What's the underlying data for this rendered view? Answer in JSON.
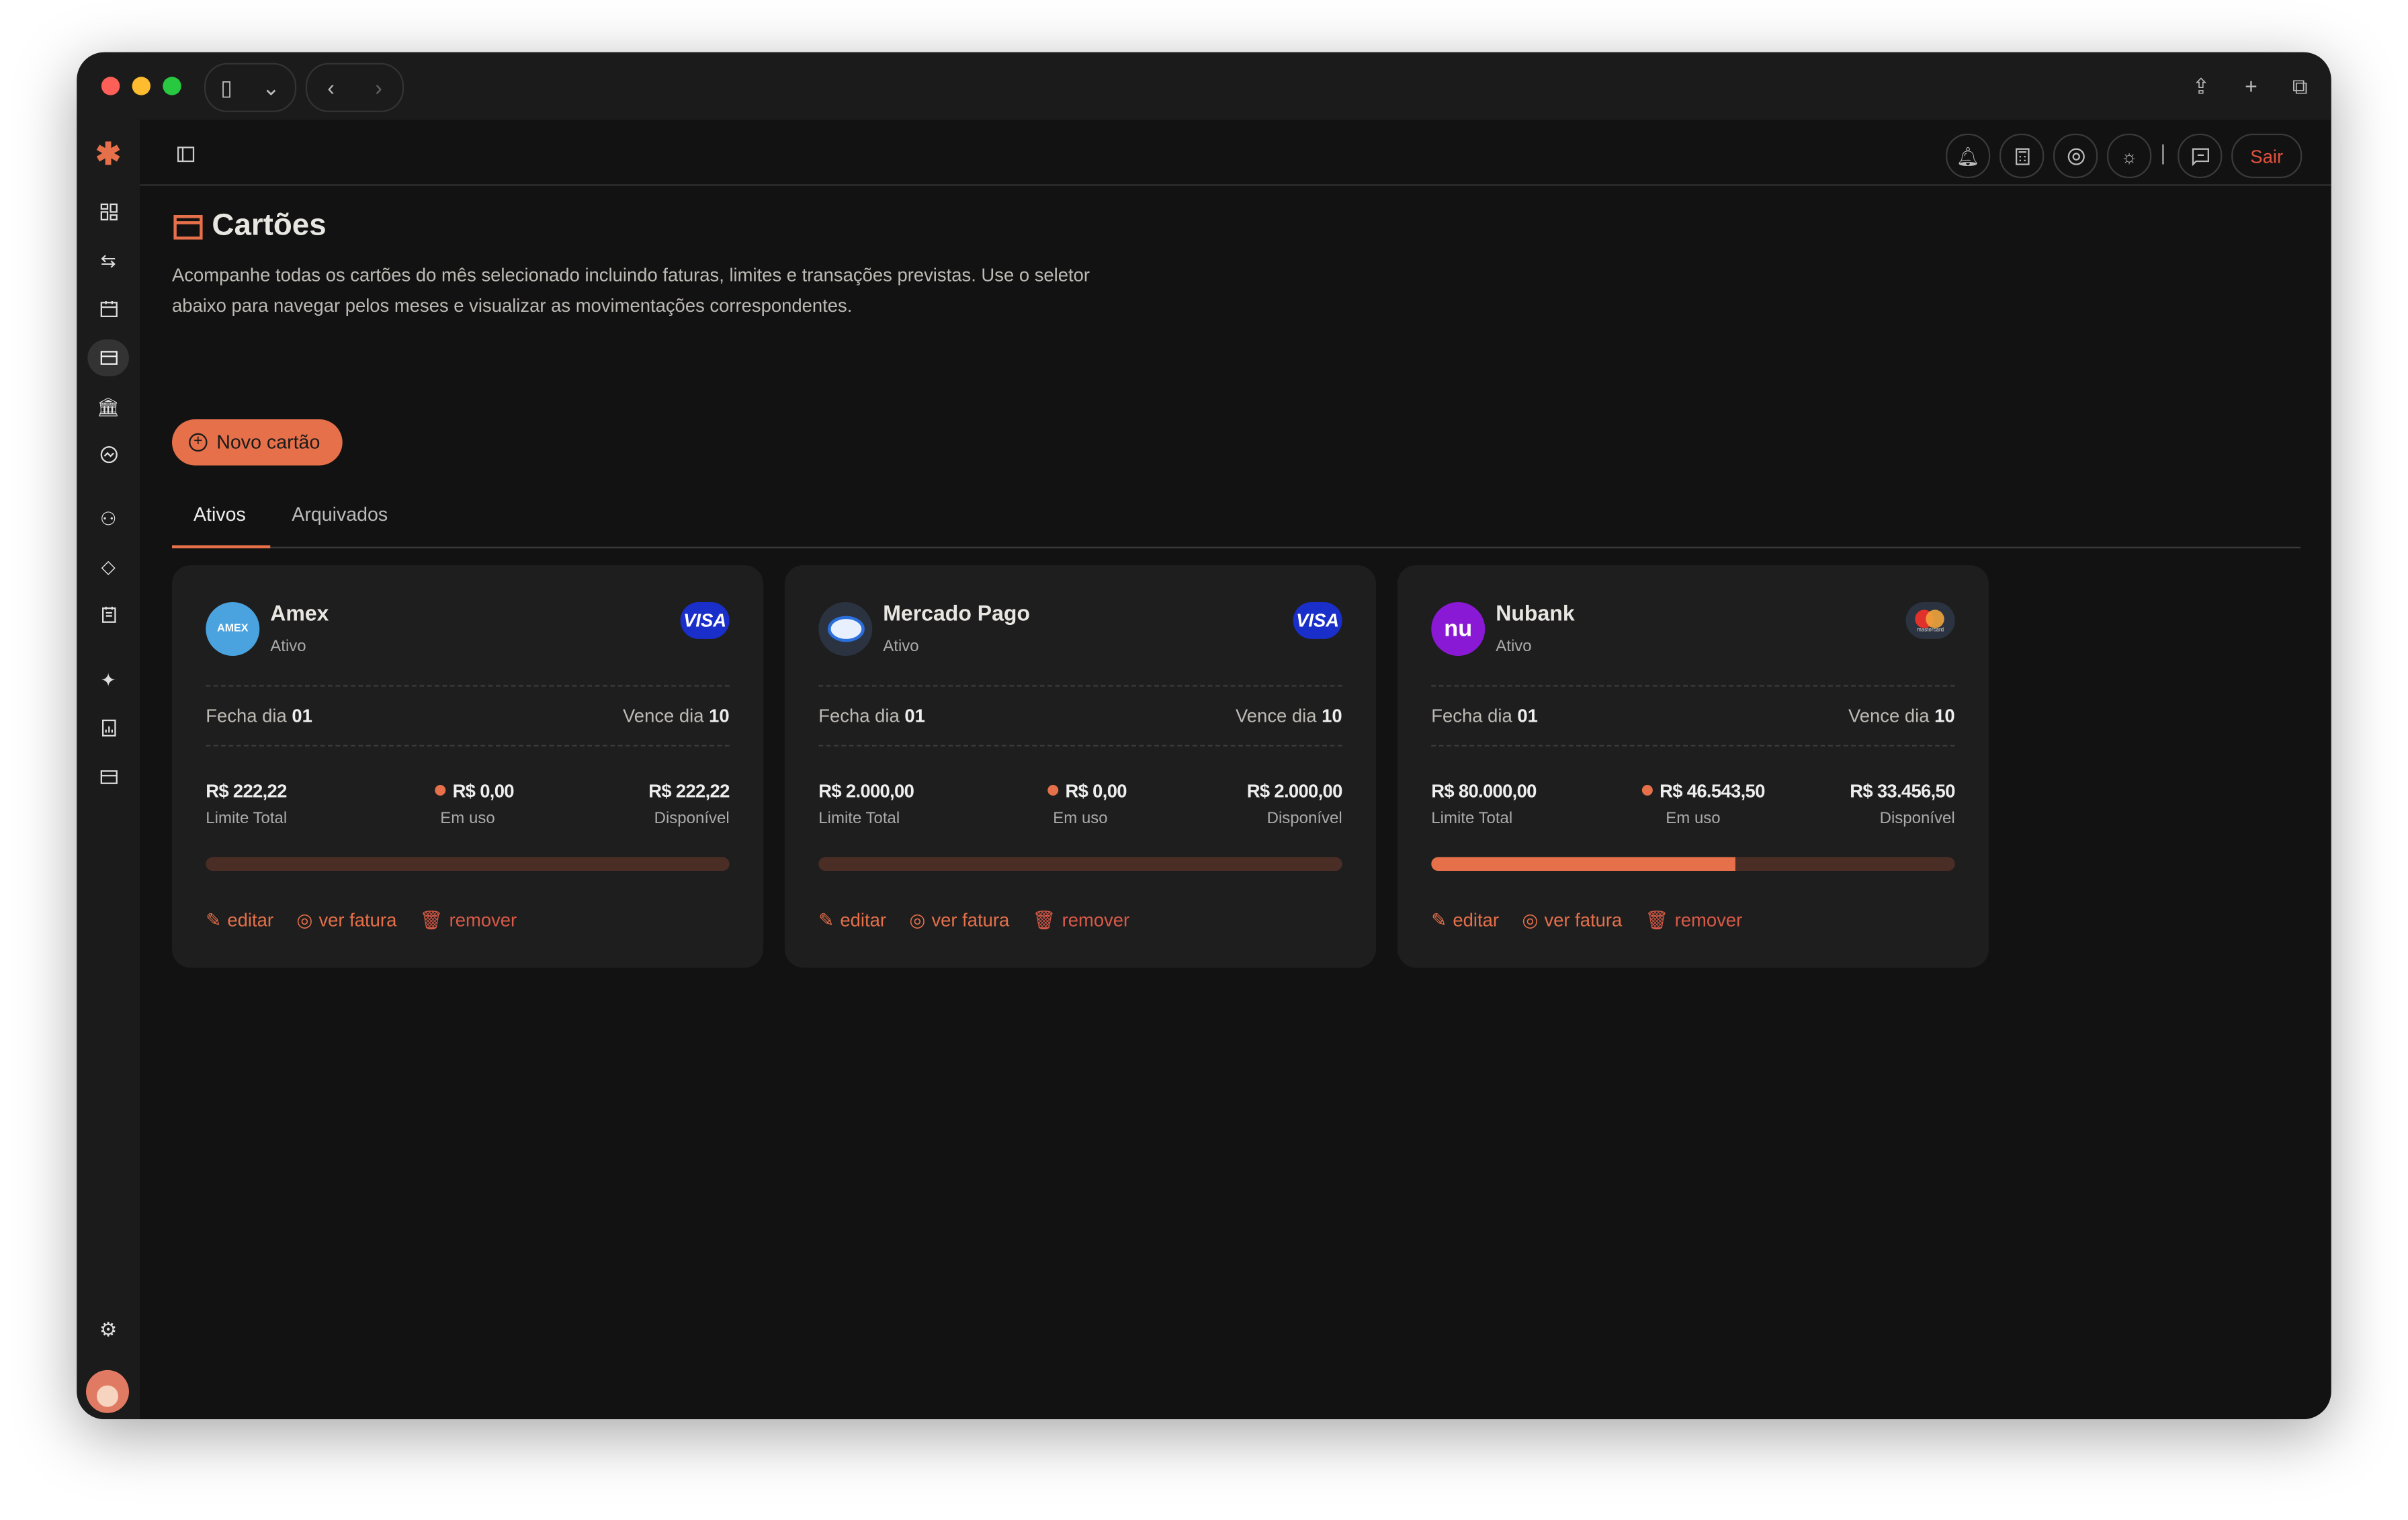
{
  "page": {
    "title": "Cartões",
    "description": "Acompanhe todas os cartões do mês selecionado incluindo faturas, limites e transações previstas. Use o seletor abaixo para navegar pelos meses e visualizar as movimentações correspondentes.",
    "new_button": "Novo cartão"
  },
  "header": {
    "logout": "Sair"
  },
  "tabs": [
    {
      "label": "Ativos",
      "active": true
    },
    {
      "label": "Arquivados",
      "active": false
    }
  ],
  "colors": {
    "accent": "#e5704a",
    "progress_track": "#4a2e25"
  },
  "cards": [
    {
      "name": "Amex",
      "status": "Ativo",
      "logo_text": "AMEX",
      "logo_color": "#4aa3df",
      "brand": "VISA",
      "closes_label": "Fecha dia",
      "closes": "01",
      "due_label": "Vence dia",
      "due": "10",
      "limit": "R$ 222,22",
      "limit_label": "Limite Total",
      "used": "R$ 0,00",
      "used_label": "Em uso",
      "available": "R$ 222,22",
      "available_label": "Disponível",
      "used_fraction": 0,
      "edit": "editar",
      "view": "ver fatura",
      "remove": "remover"
    },
    {
      "name": "Mercado Pago",
      "status": "Ativo",
      "logo_text": "",
      "logo_color": "#2b3340",
      "brand": "VISA",
      "closes_label": "Fecha dia",
      "closes": "01",
      "due_label": "Vence dia",
      "due": "10",
      "limit": "R$ 2.000,00",
      "limit_label": "Limite Total",
      "used": "R$ 0,00",
      "used_label": "Em uso",
      "available": "R$ 2.000,00",
      "available_label": "Disponível",
      "used_fraction": 0,
      "edit": "editar",
      "view": "ver fatura",
      "remove": "remover"
    },
    {
      "name": "Nubank",
      "status": "Ativo",
      "logo_text": "nu",
      "logo_color": "#8a19d6",
      "brand": "mastercard",
      "closes_label": "Fecha dia",
      "closes": "01",
      "due_label": "Vence dia",
      "due": "10",
      "limit": "R$ 80.000,00",
      "limit_label": "Limite Total",
      "used": "R$ 46.543,50",
      "used_label": "Em uso",
      "available": "R$ 33.456,50",
      "available_label": "Disponível",
      "used_fraction": 0.5818,
      "edit": "editar",
      "view": "ver fatura",
      "remove": "remover"
    }
  ]
}
